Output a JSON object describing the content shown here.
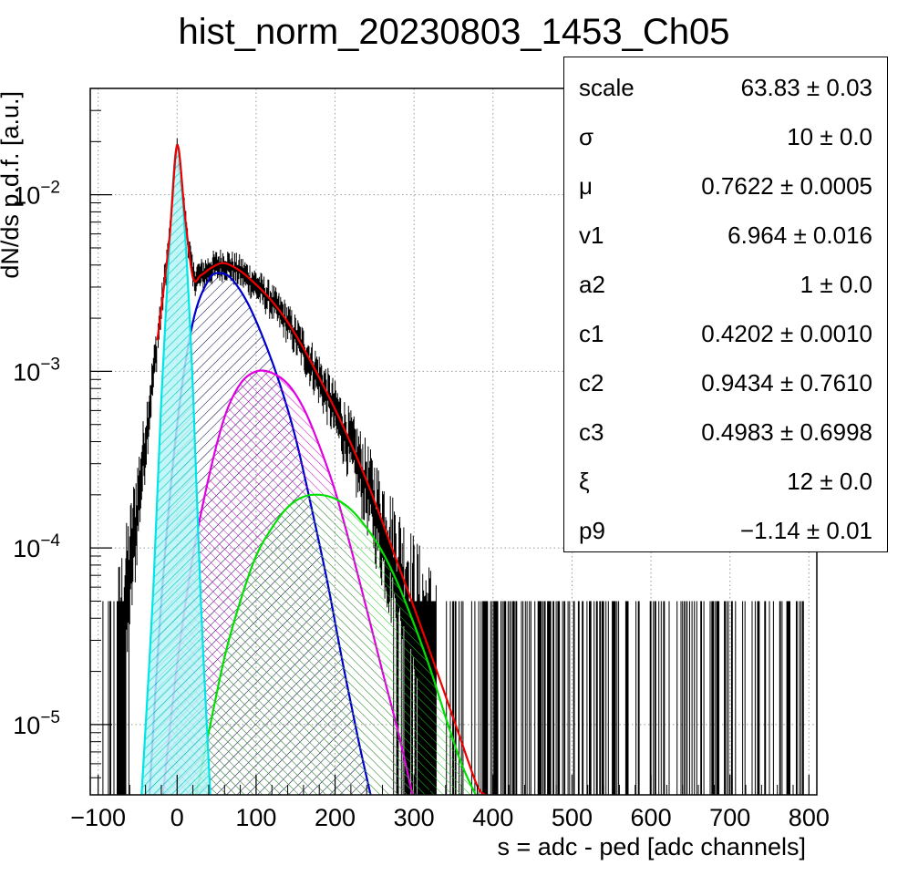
{
  "chart_data": {
    "type": "line",
    "title": "hist_norm_20230803_1453_Ch05",
    "xlabel": "s = adc - ped [adc channels]",
    "ylabel": "dN/ds p.d.f. [a.u.]",
    "xlim": [
      -110,
      810
    ],
    "ylim": [
      4e-06,
      0.04
    ],
    "yscale": "log",
    "grid": true,
    "x_ticks": [
      -100,
      0,
      100,
      200,
      300,
      400,
      500,
      600,
      700,
      800
    ],
    "x_tick_labels": [
      "−100",
      "0",
      "100",
      "200",
      "300",
      "400",
      "500",
      "600",
      "700",
      "800"
    ],
    "y_tick_labels": [
      {
        "value": 1e-05,
        "base": "10",
        "exp": "−5"
      },
      {
        "value": 0.0001,
        "base": "10",
        "exp": "−4"
      },
      {
        "value": 0.001,
        "base": "10",
        "exp": "−3"
      },
      {
        "value": 0.01,
        "base": "10",
        "exp": "−2"
      }
    ],
    "histogram_color": "#000000",
    "series": [
      {
        "component": "pedestal",
        "color": "#00e5e5",
        "fill": "#00e5e5",
        "points": [
          [
            -45,
            4e-06
          ],
          [
            -30,
            6e-05
          ],
          [
            -20,
            0.0007
          ],
          [
            -10,
            0.005
          ],
          [
            0,
            0.019
          ],
          [
            10,
            0.006
          ],
          [
            20,
            0.0008
          ],
          [
            30,
            5e-05
          ],
          [
            42,
            4e-06
          ]
        ]
      },
      {
        "component": "1pe",
        "color": "#0000cc",
        "fill": "#000066",
        "points": [
          [
            -35,
            4e-06
          ],
          [
            -20,
            5e-05
          ],
          [
            0,
            0.0005
          ],
          [
            20,
            0.0019
          ],
          [
            40,
            0.0033
          ],
          [
            55,
            0.0036
          ],
          [
            70,
            0.0033
          ],
          [
            90,
            0.0024
          ],
          [
            110,
            0.0015
          ],
          [
            130,
            0.00085
          ],
          [
            150,
            0.00042
          ],
          [
            170,
            0.00017
          ],
          [
            190,
            6.5e-05
          ],
          [
            210,
            2.2e-05
          ],
          [
            230,
            8e-06
          ],
          [
            245,
            4e-06
          ]
        ]
      },
      {
        "component": "2pe",
        "color": "#e000e0",
        "fill": "#cc00cc",
        "points": [
          [
            -18,
            4e-06
          ],
          [
            0,
            2.2e-05
          ],
          [
            20,
            9e-05
          ],
          [
            40,
            0.00025
          ],
          [
            60,
            0.00055
          ],
          [
            80,
            0.00085
          ],
          [
            100,
            0.001
          ],
          [
            120,
            0.00098
          ],
          [
            140,
            0.00085
          ],
          [
            160,
            0.00062
          ],
          [
            180,
            0.00038
          ],
          [
            200,
            0.00021
          ],
          [
            220,
            0.0001
          ],
          [
            240,
            4.5e-05
          ],
          [
            260,
            2e-05
          ],
          [
            280,
            9e-06
          ],
          [
            298,
            4e-06
          ]
        ]
      },
      {
        "component": "3pe",
        "color": "#00e000",
        "fill": "#00cc00",
        "points": [
          [
            24,
            4e-06
          ],
          [
            40,
            9e-06
          ],
          [
            60,
            2.4e-05
          ],
          [
            80,
            5e-05
          ],
          [
            100,
            9e-05
          ],
          [
            120,
            0.00013
          ],
          [
            140,
            0.00017
          ],
          [
            160,
            0.000195
          ],
          [
            180,
            0.0002
          ],
          [
            200,
            0.00019
          ],
          [
            220,
            0.000165
          ],
          [
            240,
            0.00013
          ],
          [
            260,
            9.5e-05
          ],
          [
            280,
            6.2e-05
          ],
          [
            300,
            3.7e-05
          ],
          [
            320,
            2.1e-05
          ],
          [
            340,
            1.1e-05
          ],
          [
            360,
            6e-06
          ],
          [
            378,
            4e-06
          ]
        ]
      },
      {
        "component": "total",
        "color": "#ee0000",
        "points": [
          [
            -25,
            0.0015
          ],
          [
            -10,
            0.0055
          ],
          [
            0,
            0.019
          ],
          [
            10,
            0.0075
          ],
          [
            20,
            0.0034
          ],
          [
            30,
            0.0035
          ],
          [
            45,
            0.0039
          ],
          [
            60,
            0.0041
          ],
          [
            80,
            0.0037
          ],
          [
            100,
            0.0031
          ],
          [
            120,
            0.0025
          ],
          [
            140,
            0.0019
          ],
          [
            160,
            0.00135
          ],
          [
            180,
            0.00092
          ],
          [
            200,
            0.00061
          ],
          [
            220,
            0.00039
          ],
          [
            240,
            0.00024
          ],
          [
            260,
            0.00014
          ],
          [
            280,
            8e-05
          ],
          [
            300,
            4.6e-05
          ],
          [
            320,
            2.6e-05
          ],
          [
            340,
            1.45e-05
          ],
          [
            360,
            8e-06
          ],
          [
            380,
            4.5e-06
          ],
          [
            390,
            4e-06
          ]
        ]
      }
    ]
  },
  "stats": [
    {
      "name": "scale",
      "value": "63.83 ± 0.03"
    },
    {
      "name": "σ",
      "value": "10 ± 0.0"
    },
    {
      "name": "μ",
      "value": "0.7622 ± 0.0005"
    },
    {
      "name": "v1",
      "value": "6.964 ± 0.016"
    },
    {
      "name": "a2",
      "value": "1 ± 0.0"
    },
    {
      "name": "c1",
      "value": "0.4202 ± 0.0010"
    },
    {
      "name": "c2",
      "value": "0.9434 ± 0.7610"
    },
    {
      "name": "c3",
      "value": "0.4983 ± 0.6998"
    },
    {
      "name": "ξ",
      "value": "12 ± 0.0"
    },
    {
      "name": "p9",
      "value": "−1.14 ± 0.01"
    }
  ]
}
